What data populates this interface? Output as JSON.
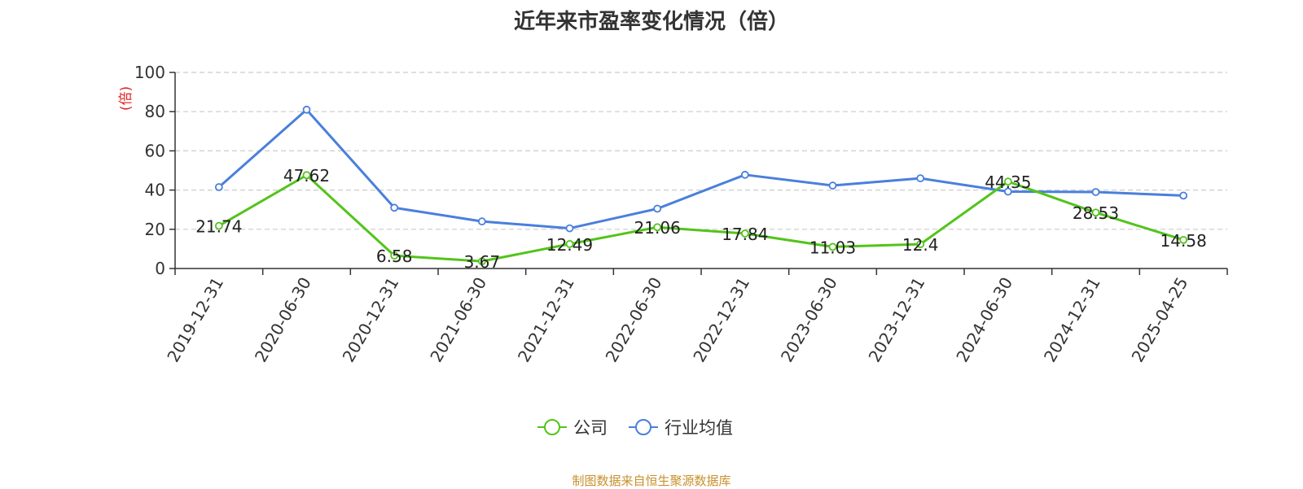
{
  "title": "近年来市盈率变化情况（倍）",
  "source": "制图数据来自恒生聚源数据库",
  "chart_data": {
    "type": "line",
    "title": "近年来市盈率变化情况（倍）",
    "ylabel": "(倍)",
    "ylim": [
      0,
      100
    ],
    "yticks": [
      0,
      20,
      40,
      60,
      80,
      100
    ],
    "grid": true,
    "legend_position": "bottom",
    "categories": [
      "2019-12-31",
      "2020-06-30",
      "2020-12-31",
      "2021-06-30",
      "2021-12-31",
      "2022-06-30",
      "2022-12-31",
      "2023-06-30",
      "2023-12-31",
      "2024-06-30",
      "2024-12-31",
      "2025-04-25"
    ],
    "series": [
      {
        "name": "公司",
        "color": "#52c41a",
        "values": [
          21.74,
          47.62,
          6.58,
          3.67,
          12.49,
          21.06,
          17.84,
          11.03,
          12.4,
          44.35,
          28.53,
          14.58
        ],
        "labels": [
          "21.74",
          "47.62",
          "6.58",
          "3.67",
          "12.49",
          "21.06",
          "17.84",
          "11.03",
          "12.4",
          "44.35",
          "28.53",
          "14.58"
        ]
      },
      {
        "name": "行业均值",
        "color": "#4a7fdc",
        "values": [
          41.5,
          81.0,
          31.0,
          24.0,
          20.5,
          30.5,
          47.8,
          42.3,
          46.0,
          39.2,
          39.0,
          37.2
        ]
      }
    ]
  }
}
